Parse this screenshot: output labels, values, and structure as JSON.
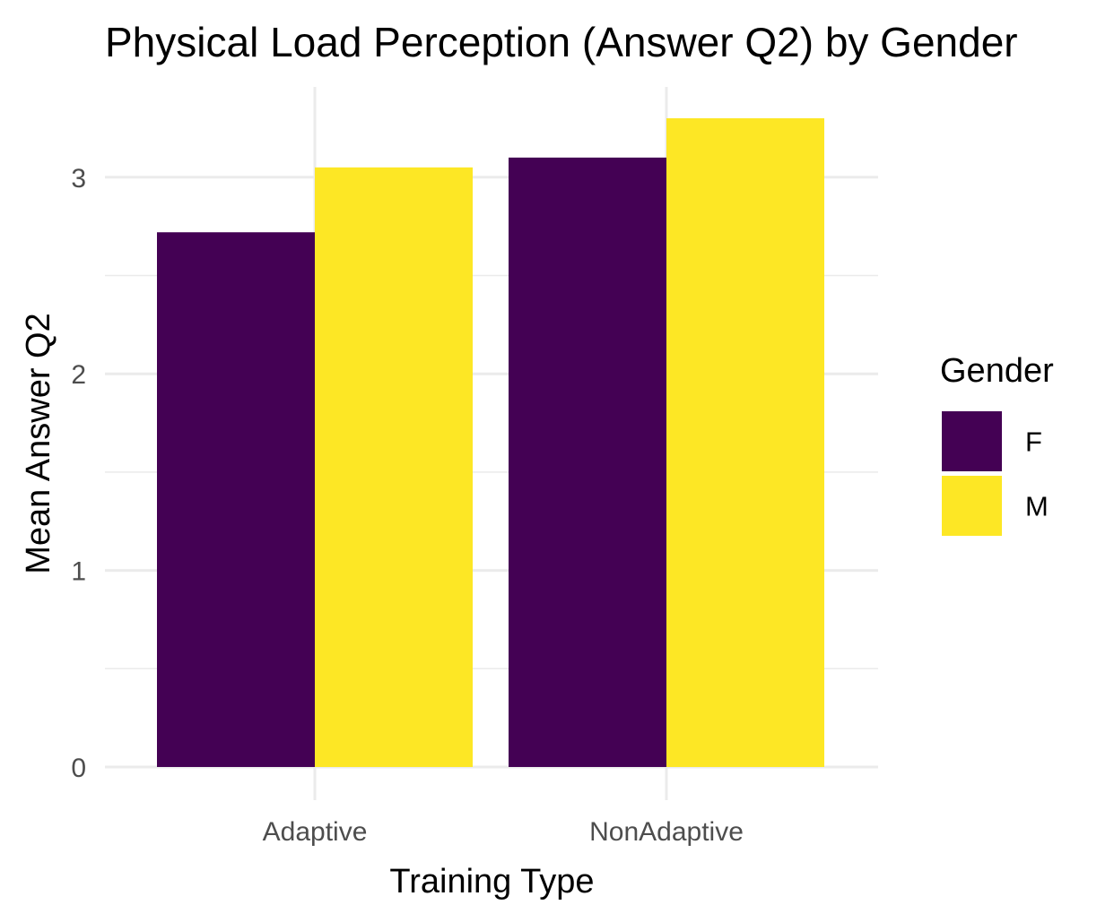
{
  "chart_data": {
    "type": "bar",
    "title": "Physical Load Perception (Answer Q2) by Gender",
    "xlabel": "Training Type",
    "ylabel": "Mean Answer Q2",
    "categories": [
      "Adaptive",
      "NonAdaptive"
    ],
    "series": [
      {
        "name": "F",
        "color": "#440154",
        "values": [
          2.72,
          3.1
        ]
      },
      {
        "name": "M",
        "color": "#fde725",
        "values": [
          3.05,
          3.3
        ]
      }
    ],
    "ylim": [
      0,
      3.45
    ],
    "yticks": [
      0,
      1,
      2,
      3
    ],
    "grid": true,
    "legend": {
      "title": "Gender",
      "position": "right",
      "entries": [
        "F",
        "M"
      ]
    }
  }
}
